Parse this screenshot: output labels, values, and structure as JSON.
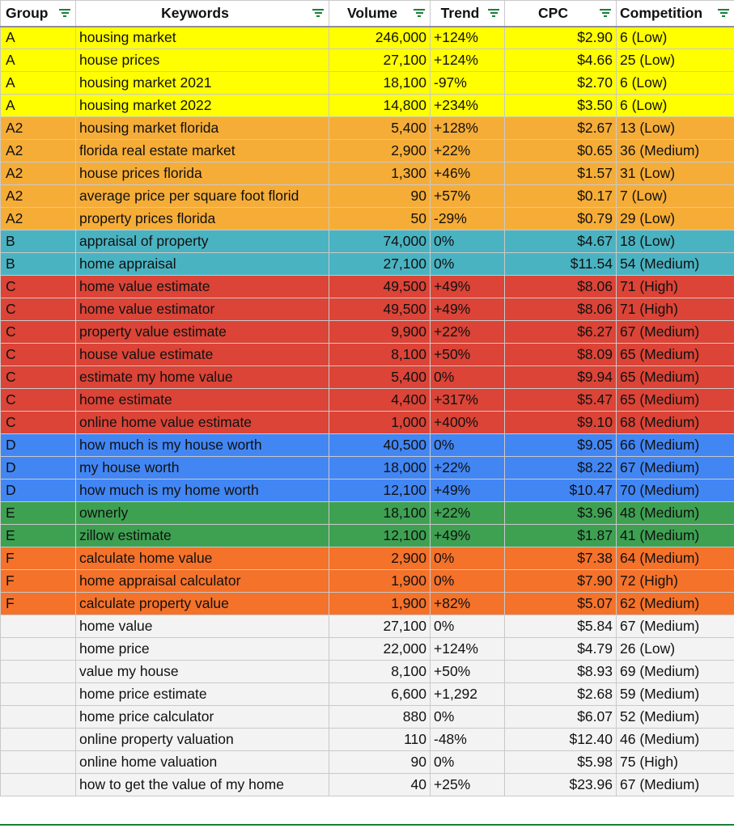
{
  "headers": {
    "group": "Group",
    "keywords": "Keywords",
    "volume": "Volume",
    "trend": "Trend",
    "cpc": "CPC",
    "competition": "Competition"
  },
  "rows": [
    {
      "group": "A",
      "keyword": "housing market",
      "volume": "246,000",
      "trend": "+124%",
      "cpc": "$2.90",
      "competition": "6 (Low)"
    },
    {
      "group": "A",
      "keyword": "house prices",
      "volume": "27,100",
      "trend": "+124%",
      "cpc": "$4.66",
      "competition": "25 (Low)"
    },
    {
      "group": "A",
      "keyword": "housing market 2021",
      "volume": "18,100",
      "trend": "-97%",
      "cpc": "$2.70",
      "competition": "6 (Low)"
    },
    {
      "group": "A",
      "keyword": "housing market 2022",
      "volume": "14,800",
      "trend": "+234%",
      "cpc": "$3.50",
      "competition": "6 (Low)"
    },
    {
      "group": "A2",
      "keyword": "housing market florida",
      "volume": "5,400",
      "trend": "+128%",
      "cpc": "$2.67",
      "competition": "13 (Low)"
    },
    {
      "group": "A2",
      "keyword": "florida real estate market",
      "volume": "2,900",
      "trend": "+22%",
      "cpc": "$0.65",
      "competition": "36 (Medium)"
    },
    {
      "group": "A2",
      "keyword": "house prices florida",
      "volume": "1,300",
      "trend": "+46%",
      "cpc": "$1.57",
      "competition": "31 (Low)"
    },
    {
      "group": "A2",
      "keyword": "average price per square foot florid",
      "volume": "90",
      "trend": "+57%",
      "cpc": "$0.17",
      "competition": "7 (Low)"
    },
    {
      "group": "A2",
      "keyword": "property prices florida",
      "volume": "50",
      "trend": "-29%",
      "cpc": "$0.79",
      "competition": "29 (Low)"
    },
    {
      "group": "B",
      "keyword": "appraisal of property",
      "volume": "74,000",
      "trend": "0%",
      "cpc": "$4.67",
      "competition": "18 (Low)"
    },
    {
      "group": "B",
      "keyword": "home appraisal",
      "volume": "27,100",
      "trend": "0%",
      "cpc": "$11.54",
      "competition": "54 (Medium)"
    },
    {
      "group": "C",
      "keyword": "home value estimate",
      "volume": "49,500",
      "trend": "+49%",
      "cpc": "$8.06",
      "competition": "71 (High)"
    },
    {
      "group": "C",
      "keyword": "home value estimator",
      "volume": "49,500",
      "trend": "+49%",
      "cpc": "$8.06",
      "competition": "71 (High)"
    },
    {
      "group": "C",
      "keyword": "property value estimate",
      "volume": "9,900",
      "trend": "+22%",
      "cpc": "$6.27",
      "competition": "67 (Medium)"
    },
    {
      "group": "C",
      "keyword": "house value estimate",
      "volume": "8,100",
      "trend": "+50%",
      "cpc": "$8.09",
      "competition": "65 (Medium)"
    },
    {
      "group": "C",
      "keyword": "estimate my home value",
      "volume": "5,400",
      "trend": "0%",
      "cpc": "$9.94",
      "competition": "65 (Medium)"
    },
    {
      "group": "C",
      "keyword": "home estimate",
      "volume": "4,400",
      "trend": "+317%",
      "cpc": "$5.47",
      "competition": "65 (Medium)"
    },
    {
      "group": "C",
      "keyword": "online home value estimate",
      "volume": "1,000",
      "trend": "+400%",
      "cpc": "$9.10",
      "competition": "68 (Medium)"
    },
    {
      "group": "D",
      "keyword": "how much is my house worth",
      "volume": "40,500",
      "trend": "0%",
      "cpc": "$9.05",
      "competition": "66 (Medium)"
    },
    {
      "group": "D",
      "keyword": "my house worth",
      "volume": "18,000",
      "trend": "+22%",
      "cpc": "$8.22",
      "competition": "67 (Medium)"
    },
    {
      "group": "D",
      "keyword": "how much is my home worth",
      "volume": "12,100",
      "trend": "+49%",
      "cpc": "$10.47",
      "competition": "70 (Medium)"
    },
    {
      "group": "E",
      "keyword": "ownerly",
      "volume": "18,100",
      "trend": "+22%",
      "cpc": "$3.96",
      "competition": "48 (Medium)"
    },
    {
      "group": "E",
      "keyword": "zillow estimate",
      "volume": "12,100",
      "trend": "+49%",
      "cpc": "$1.87",
      "competition": "41 (Medium)"
    },
    {
      "group": "F",
      "keyword": "calculate home value",
      "volume": "2,900",
      "trend": "0%",
      "cpc": "$7.38",
      "competition": "64 (Medium)"
    },
    {
      "group": "F",
      "keyword": "home appraisal calculator",
      "volume": "1,900",
      "trend": "0%",
      "cpc": "$7.90",
      "competition": "72 (High)"
    },
    {
      "group": "F",
      "keyword": "calculate property value",
      "volume": "1,900",
      "trend": "+82%",
      "cpc": "$5.07",
      "competition": "62 (Medium)"
    },
    {
      "group": "",
      "keyword": "home value",
      "volume": "27,100",
      "trend": "0%",
      "cpc": "$5.84",
      "competition": "67 (Medium)"
    },
    {
      "group": "",
      "keyword": "home price",
      "volume": "22,000",
      "trend": "+124%",
      "cpc": "$4.79",
      "competition": "26 (Low)"
    },
    {
      "group": "",
      "keyword": "value my house",
      "volume": "8,100",
      "trend": "+50%",
      "cpc": "$8.93",
      "competition": "69 (Medium)"
    },
    {
      "group": "",
      "keyword": "home price estimate",
      "volume": "6,600",
      "trend": "+1,292",
      "cpc": "$2.68",
      "competition": "59 (Medium)"
    },
    {
      "group": "",
      "keyword": "home price calculator",
      "volume": "880",
      "trend": "0%",
      "cpc": "$6.07",
      "competition": "52 (Medium)"
    },
    {
      "group": "",
      "keyword": "online property valuation",
      "volume": "110",
      "trend": "-48%",
      "cpc": "$12.40",
      "competition": "46 (Medium)"
    },
    {
      "group": "",
      "keyword": "online home valuation",
      "volume": "90",
      "trend": "0%",
      "cpc": "$5.98",
      "competition": "75 (High)"
    },
    {
      "group": "",
      "keyword": "how to get the value of my home",
      "volume": "40",
      "trend": "+25%",
      "cpc": "$23.96",
      "competition": "67 (Medium)"
    }
  ],
  "group_colors": {
    "A": "#ffff00",
    "A2": "#f6ad37",
    "B": "#4ab3c1",
    "C": "#db4437",
    "D": "#4286f4",
    "E": "#3ea152",
    "F": "#f5722a",
    "none": "#f3f3f3"
  },
  "icons": {
    "filter": "filter-icon"
  }
}
